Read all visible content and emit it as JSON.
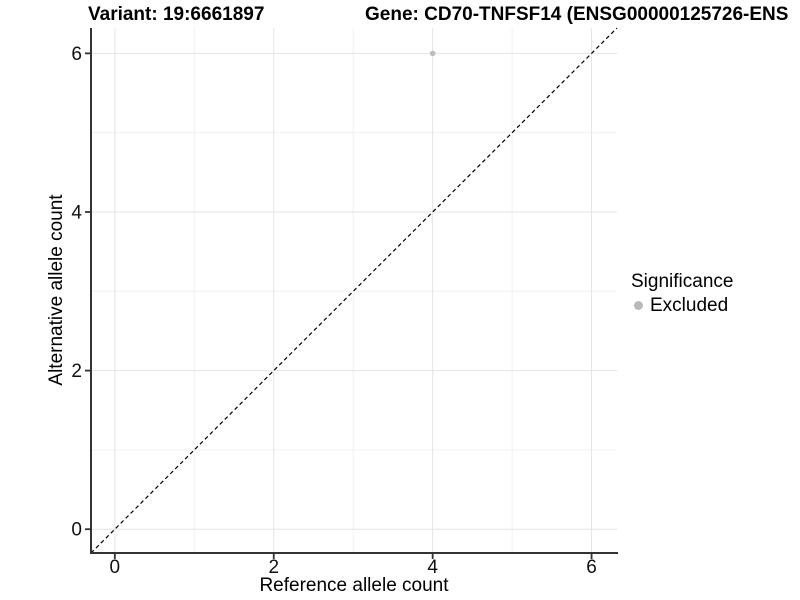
{
  "titles": {
    "variant_title": "Variant: 19:6661897",
    "gene_title": "Gene: CD70-TNFSF14 (ENSG00000125726-ENS"
  },
  "axes": {
    "x_title": "Reference allele count",
    "y_title": "Alternative allele count"
  },
  "legend": {
    "title": "Significance",
    "items": [
      {
        "label": "Excluded",
        "color": "#b9b9b9"
      }
    ]
  },
  "chart_data": {
    "type": "scatter",
    "title": "Variant: 19:6661897",
    "xlabel": "Reference allele count",
    "ylabel": "Alternative allele count",
    "xlim": [
      -0.3,
      6.32
    ],
    "ylim": [
      -0.3,
      6.32
    ],
    "x_ticks": [
      0,
      2,
      4,
      6
    ],
    "y_ticks": [
      0,
      2,
      4,
      6
    ],
    "x_minor_ticks": [
      1,
      3,
      5
    ],
    "y_minor_ticks": [
      1,
      3,
      5
    ],
    "grid": true,
    "legend_position": "right",
    "series": [
      {
        "name": "Excluded",
        "color": "#bebebe",
        "points": [
          {
            "x": 4,
            "y": 6
          }
        ]
      }
    ],
    "reference_line": {
      "style": "dashed",
      "slope": 1,
      "intercept": 0,
      "color": "#000000"
    }
  },
  "style": {
    "major_grid_color": "#e4e4e4",
    "minor_grid_color": "#f1f1f1",
    "axis_line_color": "#333333",
    "tick_label_color": "#111111",
    "point_radius": 2.8,
    "tick_font_size": 19
  }
}
